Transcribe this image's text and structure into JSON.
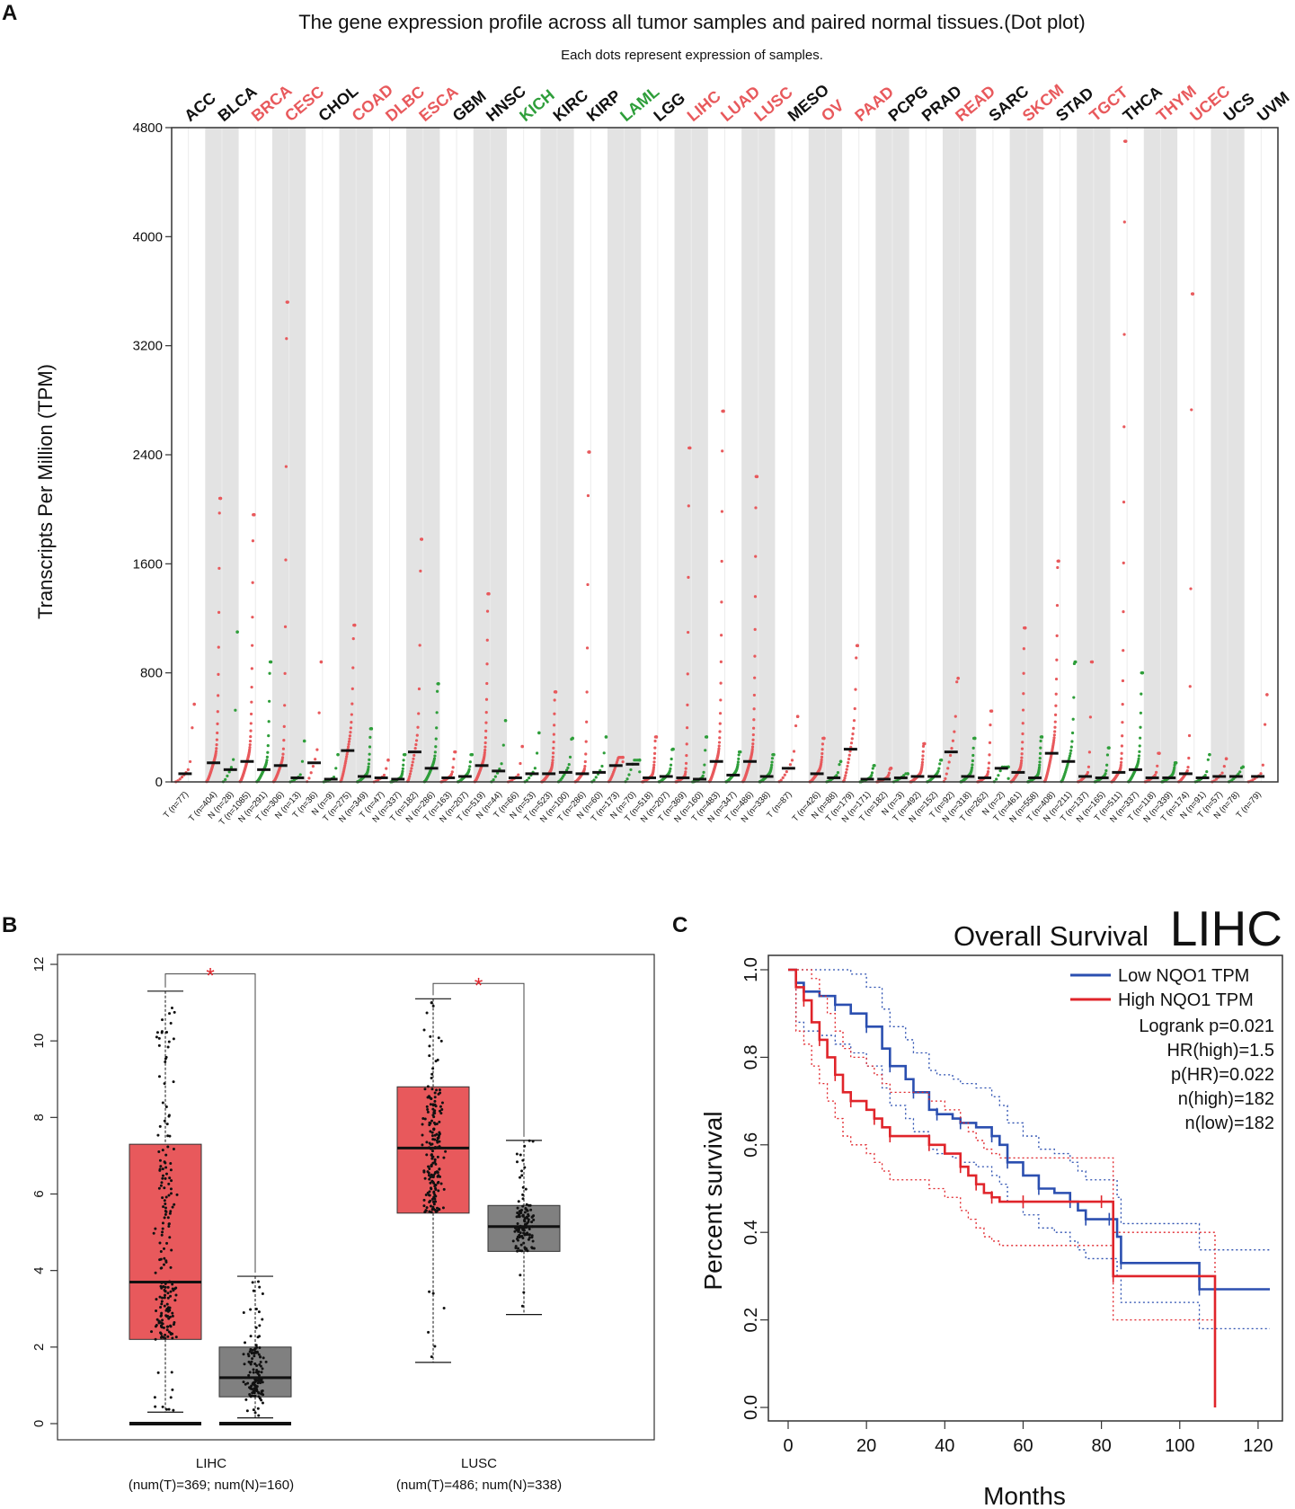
{
  "colors": {
    "tumor": "#e8595c",
    "normal": "#2e9e3a",
    "black": "#111111",
    "shade": "#e3e3e3",
    "box_t": "#e8595c",
    "box_n": "#808080",
    "low": "#2b4fb0",
    "high": "#e0242a"
  },
  "panels": {
    "a": "A",
    "b": "B",
    "c": "C"
  },
  "chart_data": [
    {
      "type": "scatter",
      "title": "The gene expression profile across all tumor samples and paired normal tissues.(Dot plot)",
      "subtitle": "Each dots represent expression of samples.",
      "ylabel": "Transcripts Per Million (TPM)",
      "ylim": [
        0,
        4800
      ],
      "yticks": [
        0,
        800,
        1600,
        2400,
        3200,
        4000,
        4800
      ],
      "cancers": [
        {
          "name": "ACC",
          "label_color": "black",
          "groups": [
            {
              "g": "T",
              "n": 77,
              "median": 60,
              "max": 570
            }
          ]
        },
        {
          "name": "BLCA",
          "label_color": "black",
          "groups": [
            {
              "g": "T",
              "n": 404,
              "median": 140,
              "max": 2080
            },
            {
              "g": "N",
              "n": 28,
              "median": 90,
              "max": 1100
            }
          ]
        },
        {
          "name": "BRCA",
          "label_color": "red",
          "groups": [
            {
              "g": "T",
              "n": 1085,
              "median": 150,
              "max": 1960
            },
            {
              "g": "N",
              "n": 291,
              "median": 90,
              "max": 880
            }
          ]
        },
        {
          "name": "CESC",
          "label_color": "red",
          "groups": [
            {
              "g": "T",
              "n": 306,
              "median": 120,
              "max": 3520
            },
            {
              "g": "N",
              "n": 13,
              "median": 30,
              "max": 300
            }
          ]
        },
        {
          "name": "CHOL",
          "label_color": "black",
          "groups": [
            {
              "g": "T",
              "n": 36,
              "median": 140,
              "max": 880
            },
            {
              "g": "N",
              "n": 9,
              "median": 20,
              "max": 200
            }
          ]
        },
        {
          "name": "COAD",
          "label_color": "red",
          "groups": [
            {
              "g": "T",
              "n": 275,
              "median": 230,
              "max": 1150
            },
            {
              "g": "N",
              "n": 349,
              "median": 40,
              "max": 390
            }
          ]
        },
        {
          "name": "DLBC",
          "label_color": "red",
          "groups": [
            {
              "g": "T",
              "n": 47,
              "median": 30,
              "max": 160
            },
            {
              "g": "N",
              "n": 337,
              "median": 20,
              "max": 200
            }
          ]
        },
        {
          "name": "ESCA",
          "label_color": "red",
          "groups": [
            {
              "g": "T",
              "n": 182,
              "median": 220,
              "max": 1780
            },
            {
              "g": "N",
              "n": 286,
              "median": 100,
              "max": 720
            }
          ]
        },
        {
          "name": "GBM",
          "label_color": "black",
          "groups": [
            {
              "g": "T",
              "n": 163,
              "median": 30,
              "max": 220
            },
            {
              "g": "N",
              "n": 207,
              "median": 40,
              "max": 200
            }
          ]
        },
        {
          "name": "HNSC",
          "label_color": "black",
          "groups": [
            {
              "g": "T",
              "n": 519,
              "median": 120,
              "max": 1380
            },
            {
              "g": "N",
              "n": 44,
              "median": 80,
              "max": 450
            }
          ]
        },
        {
          "name": "KICH",
          "label_color": "green",
          "groups": [
            {
              "g": "T",
              "n": 66,
              "median": 30,
              "max": 260
            },
            {
              "g": "N",
              "n": 53,
              "median": 60,
              "max": 360
            }
          ]
        },
        {
          "name": "KIRC",
          "label_color": "black",
          "groups": [
            {
              "g": "T",
              "n": 523,
              "median": 60,
              "max": 660
            },
            {
              "g": "N",
              "n": 100,
              "median": 70,
              "max": 320
            }
          ]
        },
        {
          "name": "KIRP",
          "label_color": "black",
          "groups": [
            {
              "g": "T",
              "n": 286,
              "median": 60,
              "max": 2420
            },
            {
              "g": "N",
              "n": 60,
              "median": 70,
              "max": 330
            }
          ]
        },
        {
          "name": "LAML",
          "label_color": "green",
          "groups": [
            {
              "g": "T",
              "n": 173,
              "median": 120,
              "max": 180
            },
            {
              "g": "N",
              "n": 70,
              "median": 130,
              "max": 160
            }
          ]
        },
        {
          "name": "LGG",
          "label_color": "black",
          "groups": [
            {
              "g": "T",
              "n": 518,
              "median": 30,
              "max": 330
            },
            {
              "g": "N",
              "n": 207,
              "median": 40,
              "max": 240
            }
          ]
        },
        {
          "name": "LIHC",
          "label_color": "red",
          "groups": [
            {
              "g": "T",
              "n": 369,
              "median": 30,
              "max": 2450
            },
            {
              "g": "N",
              "n": 160,
              "median": 20,
              "max": 330
            }
          ]
        },
        {
          "name": "LUAD",
          "label_color": "red",
          "groups": [
            {
              "g": "T",
              "n": 483,
              "median": 150,
              "max": 2720
            },
            {
              "g": "N",
              "n": 347,
              "median": 50,
              "max": 220
            }
          ]
        },
        {
          "name": "LUSC",
          "label_color": "red",
          "groups": [
            {
              "g": "T",
              "n": 486,
              "median": 150,
              "max": 2240
            },
            {
              "g": "N",
              "n": 338,
              "median": 40,
              "max": 200
            }
          ]
        },
        {
          "name": "MESO",
          "label_color": "black",
          "groups": [
            {
              "g": "T",
              "n": 87,
              "median": 100,
              "max": 480
            }
          ]
        },
        {
          "name": "OV",
          "label_color": "red",
          "groups": [
            {
              "g": "T",
              "n": 426,
              "median": 60,
              "max": 320
            },
            {
              "g": "N",
              "n": 88,
              "median": 30,
              "max": 150
            }
          ]
        },
        {
          "name": "PAAD",
          "label_color": "red",
          "groups": [
            {
              "g": "T",
              "n": 179,
              "median": 240,
              "max": 1000
            },
            {
              "g": "N",
              "n": 171,
              "median": 20,
              "max": 120
            }
          ]
        },
        {
          "name": "PCPG",
          "label_color": "black",
          "groups": [
            {
              "g": "T",
              "n": 182,
              "median": 20,
              "max": 100
            },
            {
              "g": "N",
              "n": 3,
              "median": 30,
              "max": 60
            }
          ]
        },
        {
          "name": "PRAD",
          "label_color": "black",
          "groups": [
            {
              "g": "T",
              "n": 492,
              "median": 40,
              "max": 280
            },
            {
              "g": "N",
              "n": 152,
              "median": 40,
              "max": 160
            }
          ]
        },
        {
          "name": "READ",
          "label_color": "red",
          "groups": [
            {
              "g": "T",
              "n": 92,
              "median": 220,
              "max": 760
            },
            {
              "g": "N",
              "n": 318,
              "median": 40,
              "max": 320
            }
          ]
        },
        {
          "name": "SARC",
          "label_color": "black",
          "groups": [
            {
              "g": "T",
              "n": 262,
              "median": 30,
              "max": 520
            },
            {
              "g": "N",
              "n": 2,
              "median": 100,
              "max": 110
            }
          ]
        },
        {
          "name": "SKCM",
          "label_color": "red",
          "groups": [
            {
              "g": "T",
              "n": 461,
              "median": 70,
              "max": 1130
            },
            {
              "g": "N",
              "n": 558,
              "median": 30,
              "max": 330
            }
          ]
        },
        {
          "name": "STAD",
          "label_color": "black",
          "groups": [
            {
              "g": "T",
              "n": 408,
              "median": 210,
              "max": 1620
            },
            {
              "g": "N",
              "n": 211,
              "median": 150,
              "max": 880
            }
          ]
        },
        {
          "name": "TGCT",
          "label_color": "red",
          "groups": [
            {
              "g": "T",
              "n": 137,
              "median": 40,
              "max": 880
            },
            {
              "g": "N",
              "n": 165,
              "median": 30,
              "max": 250
            }
          ]
        },
        {
          "name": "THCA",
          "label_color": "black",
          "groups": [
            {
              "g": "T",
              "n": 511,
              "median": 70,
              "max": 4700
            },
            {
              "g": "N",
              "n": 337,
              "median": 90,
              "max": 800
            }
          ]
        },
        {
          "name": "THYM",
          "label_color": "red",
          "groups": [
            {
              "g": "T",
              "n": 118,
              "median": 30,
              "max": 210
            },
            {
              "g": "N",
              "n": 339,
              "median": 30,
              "max": 140
            }
          ]
        },
        {
          "name": "UCEC",
          "label_color": "red",
          "groups": [
            {
              "g": "T",
              "n": 174,
              "median": 60,
              "max": 3580
            },
            {
              "g": "N",
              "n": 91,
              "median": 30,
              "max": 200
            }
          ]
        },
        {
          "name": "UCS",
          "label_color": "black",
          "groups": [
            {
              "g": "T",
              "n": 57,
              "median": 40,
              "max": 170
            },
            {
              "g": "N",
              "n": 78,
              "median": 40,
              "max": 110
            }
          ]
        },
        {
          "name": "UVM",
          "label_color": "black",
          "groups": [
            {
              "g": "T",
              "n": 79,
              "median": 40,
              "max": 640
            }
          ]
        }
      ]
    },
    {
      "type": "box",
      "ylim": [
        0,
        12
      ],
      "yticks": [
        0,
        2,
        4,
        6,
        8,
        10,
        12
      ],
      "groups": [
        {
          "name": "LIHC",
          "sub": "(num(T)=369; num(N)=160)",
          "significance": "*",
          "tumor": {
            "q1": 2.2,
            "median": 3.7,
            "q3": 7.3,
            "lw": 0.3,
            "uw": 11.3,
            "n": 369
          },
          "normal": {
            "q1": 0.7,
            "median": 1.2,
            "q3": 2.0,
            "lw": 0.15,
            "uw": 3.85,
            "n": 160
          }
        },
        {
          "name": "LUSC",
          "sub": "(num(T)=486; num(N)=338)",
          "significance": "*",
          "tumor": {
            "q1": 5.5,
            "median": 7.2,
            "q3": 8.8,
            "lw": 1.6,
            "uw": 11.1,
            "n": 486
          },
          "normal": {
            "q1": 4.5,
            "median": 5.15,
            "q3": 5.7,
            "lw": 2.85,
            "uw": 7.4,
            "n": 338
          }
        }
      ]
    },
    {
      "type": "line",
      "title": "Overall Survival",
      "title_big": "LIHC",
      "xlabel": "Months",
      "ylabel": "Percent survival",
      "xlim": [
        0,
        125
      ],
      "ylim": [
        0,
        1
      ],
      "xticks": [
        0,
        20,
        40,
        60,
        80,
        100,
        120
      ],
      "yticks": [
        0.0,
        0.2,
        0.4,
        0.6,
        0.8,
        1.0
      ],
      "legend": [
        "Low NQO1 TPM",
        "High NQO1 TPM"
      ],
      "stats": [
        "Logrank p=0.021",
        "HR(high)=1.5",
        "p(HR)=0.022",
        "n(high)=182",
        "n(low)=182"
      ],
      "series": [
        {
          "name": "Low NQO1 TPM",
          "color": "low",
          "points": [
            [
              0,
              1.0
            ],
            [
              2,
              0.97
            ],
            [
              4,
              0.95
            ],
            [
              8,
              0.94
            ],
            [
              12,
              0.92
            ],
            [
              16,
              0.9
            ],
            [
              20,
              0.87
            ],
            [
              24,
              0.82
            ],
            [
              26,
              0.78
            ],
            [
              30,
              0.75
            ],
            [
              32,
              0.72
            ],
            [
              36,
              0.68
            ],
            [
              38,
              0.67
            ],
            [
              42,
              0.66
            ],
            [
              44,
              0.65
            ],
            [
              48,
              0.64
            ],
            [
              52,
              0.62
            ],
            [
              54,
              0.6
            ],
            [
              56,
              0.56
            ],
            [
              60,
              0.53
            ],
            [
              64,
              0.5
            ],
            [
              68,
              0.49
            ],
            [
              72,
              0.47
            ],
            [
              74,
              0.45
            ],
            [
              76,
              0.43
            ],
            [
              80,
              0.43
            ],
            [
              82,
              0.43
            ],
            [
              84,
              0.39
            ],
            [
              85,
              0.33
            ],
            [
              100,
              0.33
            ],
            [
              105,
              0.27
            ],
            [
              123,
              0.27
            ]
          ]
        },
        {
          "name": "High NQO1 TPM",
          "color": "high",
          "points": [
            [
              0,
              1.0
            ],
            [
              2,
              0.96
            ],
            [
              4,
              0.93
            ],
            [
              6,
              0.88
            ],
            [
              8,
              0.84
            ],
            [
              10,
              0.8
            ],
            [
              12,
              0.76
            ],
            [
              14,
              0.72
            ],
            [
              16,
              0.7
            ],
            [
              20,
              0.68
            ],
            [
              22,
              0.66
            ],
            [
              24,
              0.64
            ],
            [
              26,
              0.62
            ],
            [
              34,
              0.62
            ],
            [
              36,
              0.6
            ],
            [
              40,
              0.58
            ],
            [
              44,
              0.55
            ],
            [
              46,
              0.53
            ],
            [
              48,
              0.51
            ],
            [
              50,
              0.49
            ],
            [
              52,
              0.48
            ],
            [
              54,
              0.47
            ],
            [
              60,
              0.47
            ],
            [
              70,
              0.47
            ],
            [
              80,
              0.47
            ],
            [
              82,
              0.47
            ],
            [
              83,
              0.3
            ],
            [
              108,
              0.3
            ],
            [
              109,
              0.0
            ]
          ]
        }
      ]
    }
  ]
}
